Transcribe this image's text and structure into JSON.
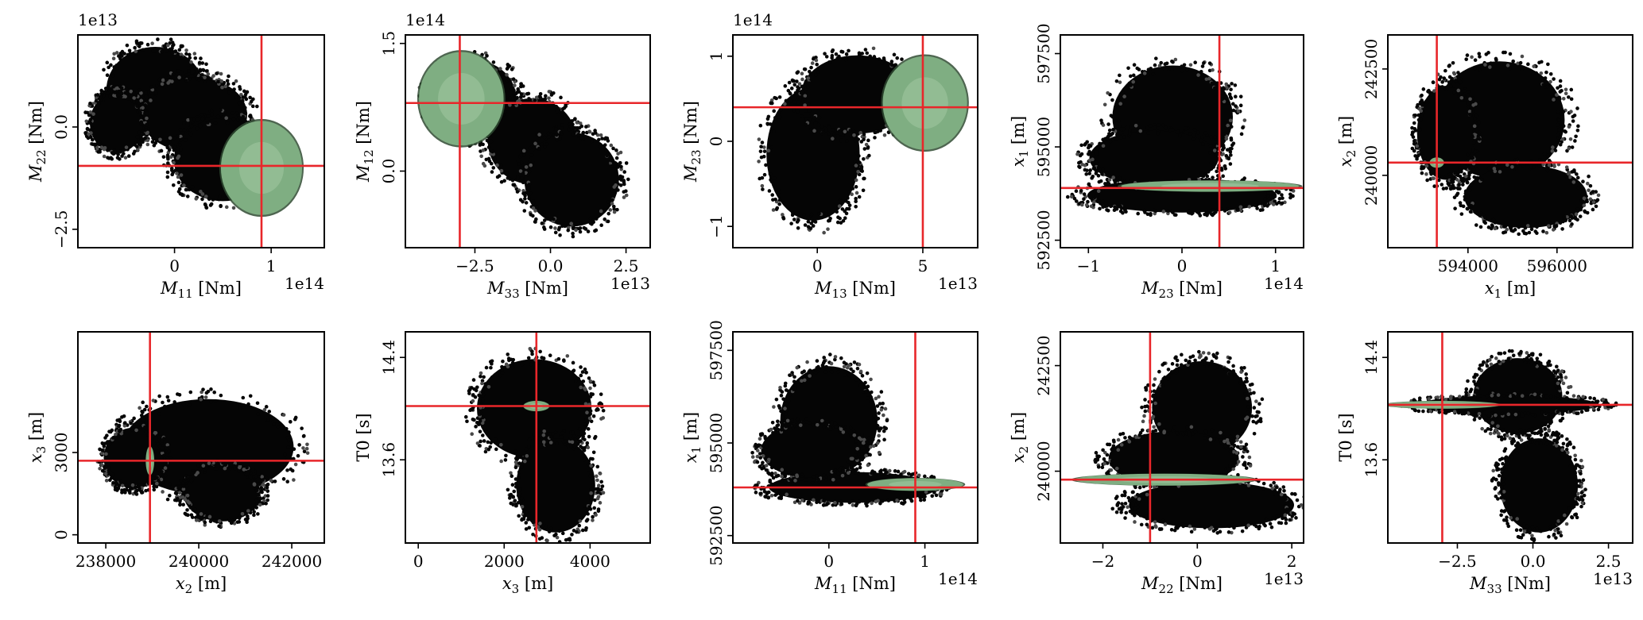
{
  "colors": {
    "cloud": "#050505",
    "cloud_edge": "#4a4a4a",
    "posterior": "#7fae82",
    "posterior_edge": "#b8d8b4",
    "crosshair": "#e8262a"
  },
  "chart_data": [
    {
      "type": "scatter",
      "xlabel": "M",
      "xsub": "11",
      "xunit": " [Nm]",
      "ylabel": "M",
      "ysub": "22",
      "yunit": " [Nm]",
      "x_multiplier": "1e14",
      "y_multiplier": "1e13",
      "xlim": [
        -1.0,
        1.55
      ],
      "ylim": [
        -2.95,
        2.25
      ],
      "xticks": [
        {
          "v": 0,
          "t": "0"
        },
        {
          "v": 1,
          "t": "1"
        }
      ],
      "yticks": [
        {
          "v": -2.5,
          "t": "−2.5"
        },
        {
          "v": 0,
          "t": "0.0"
        }
      ],
      "true_value": {
        "x": 0.9,
        "y": -0.95
      },
      "cloud": [
        {
          "x": -0.2,
          "y": 0.9,
          "rx": 0.55,
          "ry": 1.15
        },
        {
          "x": 0.2,
          "y": 0.3,
          "rx": 0.6,
          "ry": 1.0
        },
        {
          "x": 0.5,
          "y": -0.8,
          "rx": 0.55,
          "ry": 1.1
        },
        {
          "x": -0.6,
          "y": 0.1,
          "rx": 0.3,
          "ry": 0.8
        }
      ],
      "posterior": [
        {
          "x": 0.9,
          "y": -1.0,
          "rx": 0.42,
          "ry": 1.15
        }
      ]
    },
    {
      "type": "scatter",
      "xlabel": "M",
      "xsub": "33",
      "xunit": " [Nm]",
      "ylabel": "M",
      "ysub": "12",
      "yunit": " [Nm]",
      "x_multiplier": "1e13",
      "y_multiplier": "1e14",
      "xlim": [
        -4.8,
        3.3
      ],
      "ylim": [
        -0.9,
        1.6
      ],
      "xticks": [
        {
          "v": -2.5,
          "t": "−2.5"
        },
        {
          "v": 0,
          "t": "0.0"
        },
        {
          "v": 2.5,
          "t": "2.5"
        }
      ],
      "yticks": [
        {
          "v": 0,
          "t": "0.0"
        },
        {
          "v": 1.5,
          "t": "1.5"
        }
      ],
      "true_value": {
        "x": -3.0,
        "y": 0.8
      },
      "cloud": [
        {
          "x": -2.6,
          "y": 0.85,
          "rx": 1.6,
          "ry": 0.5
        },
        {
          "x": -0.6,
          "y": 0.35,
          "rx": 1.6,
          "ry": 0.55
        },
        {
          "x": 0.7,
          "y": -0.1,
          "rx": 1.7,
          "ry": 0.6
        }
      ],
      "posterior": [
        {
          "x": -2.95,
          "y": 0.85,
          "rx": 1.4,
          "ry": 0.55
        }
      ]
    },
    {
      "type": "scatter",
      "xlabel": "M",
      "xsub": "13",
      "xunit": " [Nm]",
      "ylabel": "M",
      "ysub": "23",
      "yunit": " [Nm]",
      "x_multiplier": "1e13",
      "y_multiplier": "1e14",
      "xlim": [
        -4.0,
        7.6
      ],
      "ylim": [
        -1.25,
        1.25
      ],
      "xticks": [
        {
          "v": 0,
          "t": "0"
        },
        {
          "v": 5,
          "t": "5"
        }
      ],
      "yticks": [
        {
          "v": -1,
          "t": "−1"
        },
        {
          "v": 0,
          "t": "0"
        },
        {
          "v": 1,
          "t": "1"
        }
      ],
      "true_value": {
        "x": 5.0,
        "y": 0.4
      },
      "cloud": [
        {
          "x": -0.2,
          "y": -0.15,
          "rx": 2.4,
          "ry": 0.85
        },
        {
          "x": 1.9,
          "y": 0.55,
          "rx": 2.9,
          "ry": 0.5
        }
      ],
      "posterior": [
        {
          "x": 5.1,
          "y": 0.45,
          "rx": 2.0,
          "ry": 0.55
        }
      ]
    },
    {
      "type": "scatter",
      "xlabel": "M",
      "xsub": "23",
      "xunit": " [Nm]",
      "ylabel": "x",
      "ysub": "1",
      "yunit": " [m]",
      "x_multiplier": "1e14",
      "y_multiplier": "",
      "xlim": [
        -1.3,
        1.3
      ],
      "ylim": [
        592300,
        598000
      ],
      "xticks": [
        {
          "v": -1,
          "t": "−1"
        },
        {
          "v": 0,
          "t": "0"
        },
        {
          "v": 1,
          "t": "1"
        }
      ],
      "yticks": [
        {
          "v": 592500,
          "t": "592500"
        },
        {
          "v": 595000,
          "t": "595000"
        },
        {
          "v": 597500,
          "t": "597500"
        }
      ],
      "true_value": {
        "x": 0.4,
        "y": 593900
      },
      "cloud": [
        {
          "x": -0.1,
          "y": 595800,
          "rx": 0.7,
          "ry": 1500
        },
        {
          "x": 0.0,
          "y": 593700,
          "rx": 1.1,
          "ry": 500
        },
        {
          "x": -0.3,
          "y": 594700,
          "rx": 0.75,
          "ry": 800
        }
      ],
      "posterior": [
        {
          "x": 0.3,
          "y": 593950,
          "rx": 0.95,
          "ry": 150
        }
      ]
    },
    {
      "type": "scatter",
      "xlabel": "x",
      "xsub": "1",
      "xunit": " [m]",
      "ylabel": "x",
      "ysub": "2",
      "yunit": " [m]",
      "x_multiplier": "",
      "y_multiplier": "",
      "xlim": [
        592200,
        597700
      ],
      "ylim": [
        238300,
        243300
      ],
      "xticks": [
        {
          "v": 594000,
          "t": "594000"
        },
        {
          "v": 596000,
          "t": "596000"
        }
      ],
      "yticks": [
        {
          "v": 240000,
          "t": "240000"
        },
        {
          "v": 242500,
          "t": "242500"
        }
      ],
      "true_value": {
        "x": 593300,
        "y": 240300
      },
      "cloud": [
        {
          "x": 594700,
          "y": 241300,
          "rx": 1600,
          "ry": 1500
        },
        {
          "x": 595300,
          "y": 239500,
          "rx": 1500,
          "ry": 800
        },
        {
          "x": 593500,
          "y": 241000,
          "rx": 700,
          "ry": 1200
        }
      ],
      "posterior": [
        {
          "x": 593300,
          "y": 240300,
          "rx": 160,
          "ry": 120
        }
      ]
    },
    {
      "type": "scatter",
      "xlabel": "x",
      "xsub": "2",
      "xunit": " [m]",
      "ylabel": "x",
      "ysub": "3",
      "yunit": " [m]",
      "x_multiplier": "",
      "y_multiplier": "",
      "xlim": [
        237400,
        242700
      ],
      "ylim": [
        -300,
        7400
      ],
      "xticks": [
        {
          "v": 238000,
          "t": "238000"
        },
        {
          "v": 240000,
          "t": "240000"
        },
        {
          "v": 242000,
          "t": "242000"
        }
      ],
      "yticks": [
        {
          "v": 0,
          "t": "0"
        },
        {
          "v": 3000,
          "t": "3000"
        }
      ],
      "true_value": {
        "x": 238950,
        "y": 2700
      },
      "cloud": [
        {
          "x": 240200,
          "y": 3200,
          "rx": 2000,
          "ry": 1900
        },
        {
          "x": 238600,
          "y": 2800,
          "rx": 700,
          "ry": 1200
        },
        {
          "x": 240500,
          "y": 1500,
          "rx": 900,
          "ry": 1100
        }
      ],
      "posterior": [
        {
          "x": 238950,
          "y": 2700,
          "rx": 90,
          "ry": 520
        }
      ]
    },
    {
      "type": "scatter",
      "xlabel": "x",
      "xsub": "3",
      "xunit": " [m]",
      "ylabel": "T0",
      "ysub": "",
      "yunit": " [s]",
      "x_multiplier": "",
      "y_multiplier": "",
      "xlim": [
        -300,
        5400
      ],
      "ylim": [
        12.95,
        14.6
      ],
      "xticks": [
        {
          "v": 0,
          "t": "0"
        },
        {
          "v": 2000,
          "t": "2000"
        },
        {
          "v": 4000,
          "t": "4000"
        }
      ],
      "yticks": [
        {
          "v": 13.6,
          "t": "13.6"
        },
        {
          "v": 14.4,
          "t": "14.4"
        }
      ],
      "true_value": {
        "x": 2750,
        "y": 14.02
      },
      "cloud": [
        {
          "x": 2700,
          "y": 14.0,
          "rx": 1450,
          "ry": 0.42
        },
        {
          "x": 3200,
          "y": 13.4,
          "rx": 1000,
          "ry": 0.4
        }
      ],
      "posterior": [
        {
          "x": 2750,
          "y": 14.02,
          "rx": 300,
          "ry": 0.04
        }
      ]
    },
    {
      "type": "scatter",
      "xlabel": "M",
      "xsub": "11",
      "xunit": " [Nm]",
      "ylabel": "x",
      "ysub": "1",
      "yunit": " [m]",
      "x_multiplier": "1e14",
      "y_multiplier": "",
      "xlim": [
        -1.0,
        1.55
      ],
      "ylim": [
        592300,
        598000
      ],
      "xticks": [
        {
          "v": 0,
          "t": "0"
        },
        {
          "v": 1,
          "t": "1"
        }
      ],
      "yticks": [
        {
          "v": 592500,
          "t": "592500"
        },
        {
          "v": 595000,
          "t": "595000"
        },
        {
          "v": 597500,
          "t": "597500"
        }
      ],
      "true_value": {
        "x": 0.9,
        "y": 593800
      },
      "cloud": [
        {
          "x": 0.0,
          "y": 595600,
          "rx": 0.55,
          "ry": 1600
        },
        {
          "x": 0.25,
          "y": 593800,
          "rx": 0.95,
          "ry": 450
        },
        {
          "x": -0.2,
          "y": 594800,
          "rx": 0.55,
          "ry": 800
        }
      ],
      "posterior": [
        {
          "x": 0.9,
          "y": 593880,
          "rx": 0.5,
          "ry": 170
        }
      ]
    },
    {
      "type": "scatter",
      "xlabel": "M",
      "xsub": "22",
      "xunit": " [Nm]",
      "ylabel": "x",
      "ysub": "2",
      "yunit": " [m]",
      "x_multiplier": "1e13",
      "y_multiplier": "",
      "xlim": [
        -2.9,
        2.25
      ],
      "ylim": [
        238300,
        243300
      ],
      "xticks": [
        {
          "v": -2,
          "t": "−2"
        },
        {
          "v": 0,
          "t": "0"
        },
        {
          "v": 2,
          "t": "2"
        }
      ],
      "yticks": [
        {
          "v": 240000,
          "t": "240000"
        },
        {
          "v": 242500,
          "t": "242500"
        }
      ],
      "true_value": {
        "x": -1.0,
        "y": 239800
      },
      "cloud": [
        {
          "x": 0.1,
          "y": 241500,
          "rx": 1.15,
          "ry": 1200
        },
        {
          "x": -0.5,
          "y": 240300,
          "rx": 1.5,
          "ry": 700
        },
        {
          "x": 0.3,
          "y": 239200,
          "rx": 1.9,
          "ry": 600
        }
      ],
      "posterior": [
        {
          "x": -0.7,
          "y": 239800,
          "rx": 1.9,
          "ry": 140
        }
      ]
    },
    {
      "type": "scatter",
      "xlabel": "M",
      "xsub": "33",
      "xunit": " [Nm]",
      "ylabel": "T0",
      "ysub": "",
      "yunit": " [s]",
      "x_multiplier": "1e13",
      "y_multiplier": "",
      "xlim": [
        -4.8,
        3.3
      ],
      "ylim": [
        12.95,
        14.6
      ],
      "xticks": [
        {
          "v": -2.5,
          "t": "−2.5"
        },
        {
          "v": 0,
          "t": "0.0"
        },
        {
          "v": 2.5,
          "t": "2.5"
        }
      ],
      "yticks": [
        {
          "v": 13.6,
          "t": "13.6"
        },
        {
          "v": 14.4,
          "t": "14.4"
        }
      ],
      "true_value": {
        "x": -3.0,
        "y": 14.03
      },
      "cloud": [
        {
          "x": -0.5,
          "y": 14.1,
          "rx": 1.6,
          "ry": 0.32
        },
        {
          "x": 0.2,
          "y": 13.4,
          "rx": 1.4,
          "ry": 0.4
        },
        {
          "x": -0.8,
          "y": 14.03,
          "rx": 3.2,
          "ry": 0.08
        }
      ],
      "posterior": [
        {
          "x": -3.0,
          "y": 14.03,
          "rx": 1.9,
          "ry": 0.03
        }
      ]
    }
  ]
}
